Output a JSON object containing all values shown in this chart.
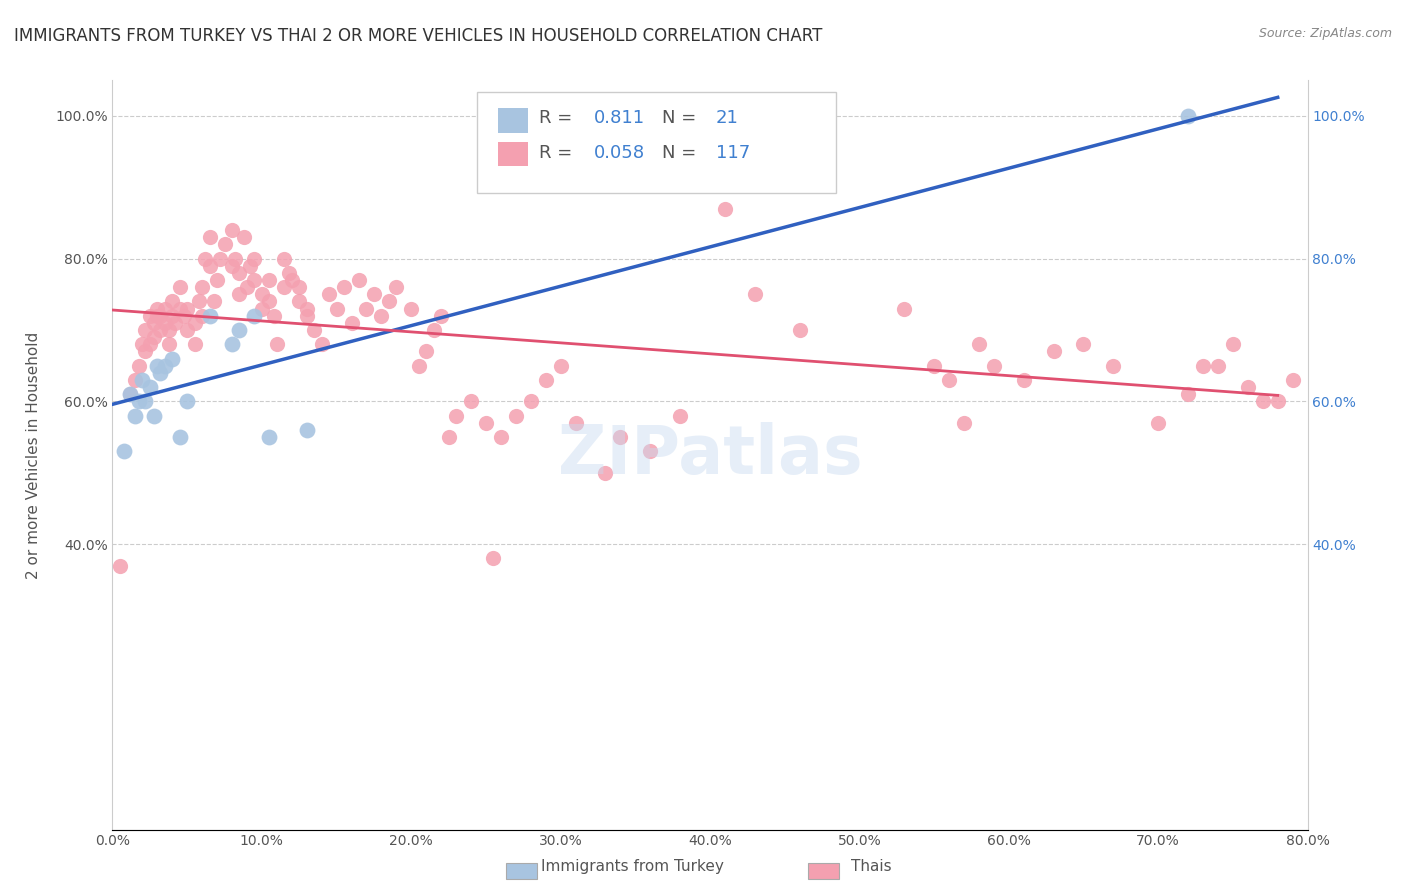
{
  "title": "IMMIGRANTS FROM TURKEY VS THAI 2 OR MORE VEHICLES IN HOUSEHOLD CORRELATION CHART",
  "source": "Source: ZipAtlas.com",
  "ylabel": "2 or more Vehicles in Household",
  "xlabel": "",
  "xlim": [
    0.0,
    0.8
  ],
  "ylim": [
    0.0,
    1.05
  ],
  "xtick_labels": [
    "0.0%",
    "10.0%",
    "20.0%",
    "30.0%",
    "40.0%",
    "50.0%",
    "60.0%",
    "70.0%",
    "80.0%"
  ],
  "xtick_vals": [
    0.0,
    0.1,
    0.2,
    0.3,
    0.4,
    0.5,
    0.6,
    0.7,
    0.8
  ],
  "ytick_labels": [
    "40.0%",
    "60.0%",
    "80.0%",
    "100.0%"
  ],
  "ytick_vals": [
    0.4,
    0.6,
    0.8,
    1.0
  ],
  "turkey_R": 0.811,
  "turkey_N": 21,
  "thai_R": 0.058,
  "thai_N": 117,
  "turkey_color": "#a8c4e0",
  "thai_color": "#f4a0b0",
  "turkey_line_color": "#3060c0",
  "thai_line_color": "#e05070",
  "legend_label_turkey": "Immigrants from Turkey",
  "legend_label_thai": "Thais",
  "watermark": "ZIPatlas",
  "turkey_x": [
    0.008,
    0.012,
    0.015,
    0.018,
    0.02,
    0.022,
    0.025,
    0.028,
    0.03,
    0.032,
    0.035,
    0.04,
    0.045,
    0.05,
    0.065,
    0.08,
    0.085,
    0.095,
    0.105,
    0.13,
    0.72
  ],
  "turkey_y": [
    0.53,
    0.61,
    0.58,
    0.6,
    0.63,
    0.6,
    0.62,
    0.58,
    0.65,
    0.64,
    0.65,
    0.66,
    0.55,
    0.6,
    0.72,
    0.68,
    0.7,
    0.72,
    0.55,
    0.56,
    1.0
  ],
  "thai_x": [
    0.005,
    0.012,
    0.015,
    0.018,
    0.02,
    0.022,
    0.022,
    0.025,
    0.025,
    0.028,
    0.028,
    0.03,
    0.03,
    0.032,
    0.032,
    0.035,
    0.035,
    0.038,
    0.038,
    0.04,
    0.04,
    0.042,
    0.045,
    0.045,
    0.048,
    0.05,
    0.05,
    0.055,
    0.055,
    0.058,
    0.06,
    0.06,
    0.062,
    0.065,
    0.065,
    0.068,
    0.07,
    0.072,
    0.075,
    0.08,
    0.08,
    0.082,
    0.085,
    0.085,
    0.088,
    0.09,
    0.092,
    0.095,
    0.095,
    0.1,
    0.1,
    0.105,
    0.105,
    0.108,
    0.11,
    0.115,
    0.115,
    0.118,
    0.12,
    0.125,
    0.125,
    0.13,
    0.13,
    0.135,
    0.14,
    0.145,
    0.15,
    0.155,
    0.16,
    0.165,
    0.17,
    0.175,
    0.18,
    0.185,
    0.19,
    0.2,
    0.205,
    0.21,
    0.215,
    0.22,
    0.225,
    0.23,
    0.24,
    0.25,
    0.255,
    0.26,
    0.27,
    0.28,
    0.29,
    0.3,
    0.31,
    0.33,
    0.34,
    0.36,
    0.38,
    0.41,
    0.43,
    0.46,
    0.53,
    0.55,
    0.56,
    0.57,
    0.58,
    0.59,
    0.61,
    0.63,
    0.65,
    0.67,
    0.7,
    0.72,
    0.73,
    0.74,
    0.75,
    0.76,
    0.77,
    0.78,
    0.79
  ],
  "thai_y": [
    0.37,
    0.61,
    0.63,
    0.65,
    0.68,
    0.67,
    0.7,
    0.68,
    0.72,
    0.69,
    0.71,
    0.72,
    0.73,
    0.7,
    0.72,
    0.71,
    0.73,
    0.68,
    0.7,
    0.72,
    0.74,
    0.71,
    0.73,
    0.76,
    0.72,
    0.7,
    0.73,
    0.68,
    0.71,
    0.74,
    0.72,
    0.76,
    0.8,
    0.79,
    0.83,
    0.74,
    0.77,
    0.8,
    0.82,
    0.79,
    0.84,
    0.8,
    0.75,
    0.78,
    0.83,
    0.76,
    0.79,
    0.8,
    0.77,
    0.75,
    0.73,
    0.74,
    0.77,
    0.72,
    0.68,
    0.76,
    0.8,
    0.78,
    0.77,
    0.76,
    0.74,
    0.72,
    0.73,
    0.7,
    0.68,
    0.75,
    0.73,
    0.76,
    0.71,
    0.77,
    0.73,
    0.75,
    0.72,
    0.74,
    0.76,
    0.73,
    0.65,
    0.67,
    0.7,
    0.72,
    0.55,
    0.58,
    0.6,
    0.57,
    0.38,
    0.55,
    0.58,
    0.6,
    0.63,
    0.65,
    0.57,
    0.5,
    0.55,
    0.53,
    0.58,
    0.87,
    0.75,
    0.7,
    0.73,
    0.65,
    0.63,
    0.57,
    0.68,
    0.65,
    0.63,
    0.67,
    0.68,
    0.65,
    0.57,
    0.61,
    0.65,
    0.65,
    0.68,
    0.62,
    0.6,
    0.6,
    0.63
  ]
}
